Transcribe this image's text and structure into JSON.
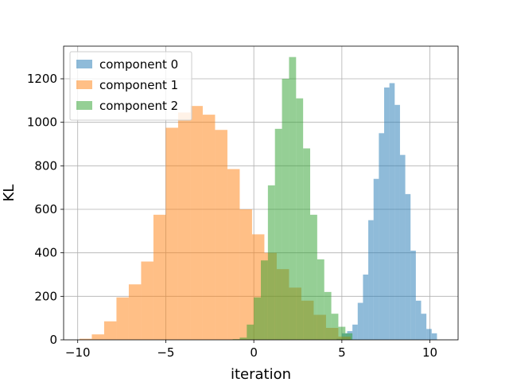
{
  "chart_data": {
    "type": "bar",
    "histogram": true,
    "xlabel": "iteration",
    "ylabel": "KL",
    "xlim": [
      -10.8,
      11.6
    ],
    "ylim": [
      0,
      1350
    ],
    "xticks": [
      -10,
      -5,
      0,
      5,
      10
    ],
    "yticks": [
      0,
      200,
      400,
      600,
      800,
      1000,
      1200
    ],
    "grid": true,
    "legend": {
      "position": "top-left",
      "alpha": 0.5
    },
    "series": [
      {
        "name": "component 0",
        "color": "#1f77b4",
        "alpha": 0.5,
        "bin_edges": [
          4.7,
          5.0,
          5.3,
          5.6,
          5.9,
          6.2,
          6.5,
          6.8,
          7.1,
          7.4,
          7.7,
          8.0,
          8.3,
          8.6,
          8.9,
          9.2,
          9.5,
          9.8,
          10.1,
          10.4
        ],
        "counts": [
          5,
          30,
          40,
          70,
          170,
          300,
          550,
          740,
          950,
          1160,
          1180,
          1080,
          850,
          670,
          410,
          180,
          120,
          50,
          30
        ]
      },
      {
        "name": "component 1",
        "color": "#ff7f0e",
        "alpha": 0.5,
        "bin_edges": [
          -9.9,
          -9.2,
          -8.5,
          -7.8,
          -7.1,
          -6.4,
          -5.7,
          -5.0,
          -4.3,
          -3.6,
          -2.9,
          -2.2,
          -1.5,
          -0.8,
          -0.1,
          0.6,
          1.3,
          2.0,
          2.7,
          3.4,
          4.1,
          4.8,
          5.5
        ],
        "counts": [
          5,
          25,
          85,
          195,
          255,
          360,
          575,
          975,
          1045,
          1075,
          1035,
          965,
          785,
          600,
          485,
          400,
          325,
          240,
          180,
          115,
          55,
          15
        ]
      },
      {
        "name": "component 2",
        "color": "#2ca02c",
        "alpha": 0.5,
        "bin_edges": [
          -1.2,
          -0.8,
          -0.4,
          0.0,
          0.4,
          0.8,
          1.2,
          1.6,
          2.0,
          2.4,
          2.8,
          3.2,
          3.6,
          4.0,
          4.4,
          4.8,
          5.2,
          5.6
        ],
        "counts": [
          3,
          10,
          70,
          195,
          365,
          710,
          970,
          1200,
          1300,
          1110,
          880,
          575,
          370,
          220,
          120,
          60,
          30
        ]
      }
    ]
  }
}
